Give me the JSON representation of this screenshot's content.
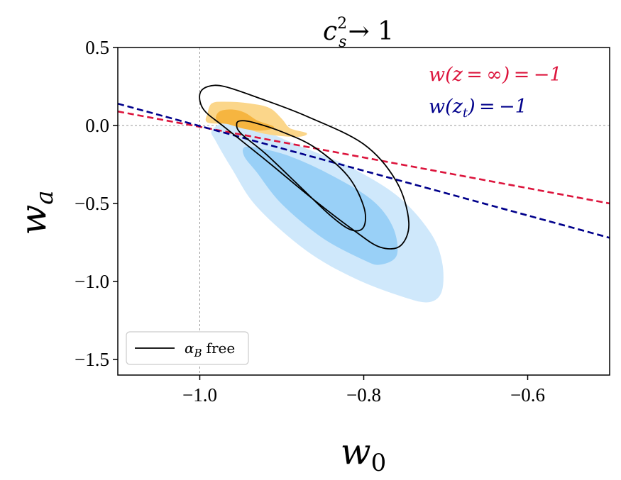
{
  "chart_data": {
    "type": "contour",
    "title": {
      "base": "c",
      "sup": "2",
      "sub": "s",
      "rest": "→ 1"
    },
    "xlabel": {
      "base": "w",
      "sub": "0"
    },
    "ylabel": {
      "base": "w",
      "sub": "a"
    },
    "xlim": [
      -1.1,
      -0.5
    ],
    "ylim": [
      -1.6,
      0.5
    ],
    "xticks": [
      -1.0,
      -0.8,
      -0.6
    ],
    "xtick_labels": [
      "−1.0",
      "−0.8",
      "−0.6"
    ],
    "yticks": [
      0.5,
      0.0,
      -0.5,
      -1.0,
      -1.5
    ],
    "ytick_labels": [
      "0.5",
      "0.0",
      "−0.5",
      "−1.0",
      "−1.5"
    ],
    "reference_lines": [
      {
        "axis": "x",
        "value": -1.0,
        "color": "#999999",
        "style": "dotted"
      },
      {
        "axis": "y",
        "value": 0.0,
        "color": "#999999",
        "style": "dotted"
      }
    ],
    "lines": [
      {
        "name": "w(z=∞) = −1",
        "color": "#dc143c",
        "style": "dashed",
        "points": [
          [
            -1.1,
            0.09
          ],
          [
            -0.5,
            -0.5
          ]
        ]
      },
      {
        "name": "w(z_t) = −1",
        "color": "#00008b",
        "style": "dashed",
        "points": [
          [
            -1.1,
            0.14
          ],
          [
            -0.5,
            -0.72
          ]
        ]
      }
    ],
    "contours": [
      {
        "name": "blue-95",
        "color": "#cfe8fb",
        "fill": true,
        "points": [
          [
            -0.985,
            -0.035
          ],
          [
            -0.97,
            0.02
          ],
          [
            -0.95,
            0.015
          ],
          [
            -0.92,
            -0.04
          ],
          [
            -0.88,
            -0.13
          ],
          [
            -0.82,
            -0.26
          ],
          [
            -0.76,
            -0.45
          ],
          [
            -0.72,
            -0.68
          ],
          [
            -0.705,
            -0.87
          ],
          [
            -0.705,
            -1.06
          ],
          [
            -0.72,
            -1.13
          ],
          [
            -0.75,
            -1.1
          ],
          [
            -0.81,
            -0.98
          ],
          [
            -0.87,
            -0.8
          ],
          [
            -0.93,
            -0.52
          ],
          [
            -0.96,
            -0.28
          ],
          [
            -0.98,
            -0.1
          ]
        ]
      },
      {
        "name": "blue-68",
        "color": "#99d0f7",
        "fill": true,
        "points": [
          [
            -0.945,
            -0.14
          ],
          [
            -0.925,
            -0.15
          ],
          [
            -0.89,
            -0.2
          ],
          [
            -0.84,
            -0.32
          ],
          [
            -0.79,
            -0.48
          ],
          [
            -0.765,
            -0.65
          ],
          [
            -0.76,
            -0.83
          ],
          [
            -0.78,
            -0.89
          ],
          [
            -0.8,
            -0.86
          ],
          [
            -0.85,
            -0.72
          ],
          [
            -0.9,
            -0.5
          ],
          [
            -0.93,
            -0.3
          ],
          [
            -0.945,
            -0.2
          ]
        ]
      },
      {
        "name": "orange-95",
        "color": "#fbd68a",
        "fill": true,
        "points": [
          [
            -0.99,
            0.08
          ],
          [
            -0.985,
            0.14
          ],
          [
            -0.97,
            0.15
          ],
          [
            -0.94,
            0.14
          ],
          [
            -0.915,
            0.11
          ],
          [
            -0.9,
            0.04
          ],
          [
            -0.89,
            -0.02
          ],
          [
            -0.87,
            -0.05
          ],
          [
            -0.88,
            -0.07
          ],
          [
            -0.91,
            -0.06
          ],
          [
            -0.93,
            -0.04
          ],
          [
            -0.96,
            0.01
          ],
          [
            -0.99,
            0.02
          ]
        ]
      },
      {
        "name": "orange-68",
        "color": "#f6b540",
        "fill": true,
        "points": [
          [
            -0.98,
            0.05
          ],
          [
            -0.975,
            0.09
          ],
          [
            -0.96,
            0.1
          ],
          [
            -0.945,
            0.08
          ],
          [
            -0.93,
            0.03
          ],
          [
            -0.91,
            -0.01
          ],
          [
            -0.925,
            -0.03
          ],
          [
            -0.945,
            -0.02
          ],
          [
            -0.965,
            0.01
          ],
          [
            -0.975,
            0.02
          ]
        ]
      },
      {
        "name": "black-95",
        "color": "#000000",
        "fill": false,
        "points": [
          [
            -1.0,
            0.2
          ],
          [
            -0.99,
            0.25
          ],
          [
            -0.97,
            0.25
          ],
          [
            -0.93,
            0.18
          ],
          [
            -0.87,
            0.06
          ],
          [
            -0.8,
            -0.12
          ],
          [
            -0.76,
            -0.36
          ],
          [
            -0.745,
            -0.62
          ],
          [
            -0.755,
            -0.77
          ],
          [
            -0.78,
            -0.78
          ],
          [
            -0.81,
            -0.68
          ],
          [
            -0.86,
            -0.48
          ],
          [
            -0.92,
            -0.22
          ],
          [
            -0.97,
            -0.01
          ],
          [
            -0.995,
            0.1
          ]
        ]
      },
      {
        "name": "black-68",
        "color": "#000000",
        "fill": false,
        "points": [
          [
            -0.955,
            0.01
          ],
          [
            -0.95,
            0.03
          ],
          [
            -0.935,
            0.02
          ],
          [
            -0.9,
            -0.04
          ],
          [
            -0.86,
            -0.14
          ],
          [
            -0.82,
            -0.32
          ],
          [
            -0.8,
            -0.52
          ],
          [
            -0.8,
            -0.65
          ],
          [
            -0.815,
            -0.67
          ],
          [
            -0.84,
            -0.58
          ],
          [
            -0.88,
            -0.38
          ],
          [
            -0.92,
            -0.18
          ],
          [
            -0.95,
            -0.05
          ]
        ]
      }
    ],
    "legend": {
      "placement": "lower-left",
      "entries": [
        {
          "label": "free",
          "symbol": "α",
          "symbol_sub": "B",
          "color": "#000000"
        }
      ]
    },
    "annotations": [
      {
        "text_main": "w(z = ∞) = −1",
        "color": "#dc143c",
        "placement": "upper-right"
      },
      {
        "text_pre": "w(z",
        "text_sub": "t",
        "text_post": ") = −1",
        "color": "#00008b",
        "placement": "upper-right"
      }
    ]
  }
}
